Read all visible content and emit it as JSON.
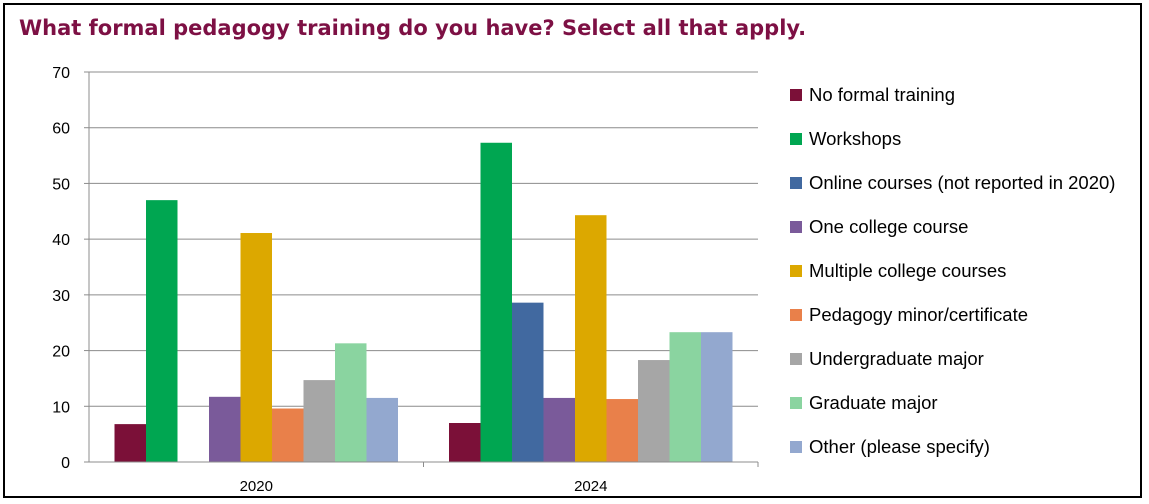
{
  "chart_data": {
    "type": "bar",
    "title": "What formal pedagogy training do you have? Select all that apply.",
    "xlabel": "",
    "ylabel": "",
    "categories": [
      "2020",
      "2024"
    ],
    "ylim": [
      0,
      70
    ],
    "yticks": [
      0,
      10,
      20,
      30,
      40,
      50,
      60,
      70
    ],
    "grid": true,
    "legend_position": "right",
    "series": [
      {
        "name": "No formal training",
        "color": "#7b1038",
        "values": [
          6.8,
          7.0
        ]
      },
      {
        "name": "Workshops",
        "color": "#00a651",
        "values": [
          47.0,
          57.3
        ]
      },
      {
        "name": "Online courses (not reported in 2020)",
        "color": "#4169a0",
        "values": [
          null,
          28.6
        ]
      },
      {
        "name": "One college course",
        "color": "#7a5a9a",
        "values": [
          11.7,
          11.5
        ]
      },
      {
        "name": "Multiple college courses",
        "color": "#dca800",
        "values": [
          41.1,
          44.3
        ]
      },
      {
        "name": "Pedagogy minor/certificate",
        "color": "#e9804a",
        "values": [
          9.6,
          11.3
        ]
      },
      {
        "name": "Undergraduate major",
        "color": "#a6a6a6",
        "values": [
          14.7,
          18.3
        ]
      },
      {
        "name": "Graduate major",
        "color": "#8ad4a0",
        "values": [
          21.3,
          23.3
        ]
      },
      {
        "name": "Other (please specify)",
        "color": "#93a8cf",
        "values": [
          11.5,
          23.3
        ]
      }
    ]
  }
}
